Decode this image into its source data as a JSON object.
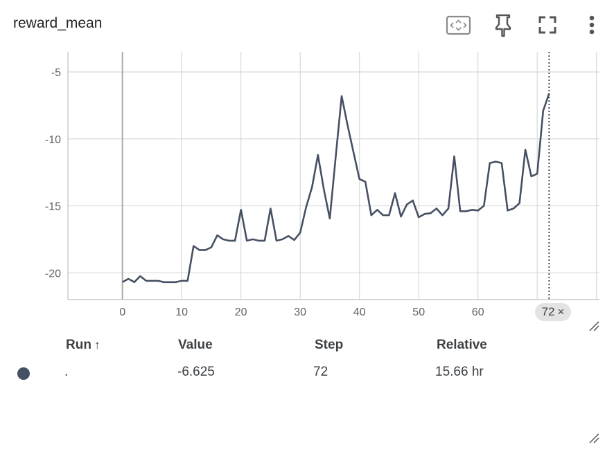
{
  "card": {
    "title": "reward_mean"
  },
  "toolbar": {
    "fit_icon": "fit-domain-icon",
    "pin_icon": "pin-icon",
    "fullscreen_icon": "fullscreen-icon",
    "more_icon": "more-vert-icon"
  },
  "chart_data": {
    "type": "line",
    "x": [
      0,
      1,
      2,
      3,
      4,
      5,
      6,
      7,
      8,
      9,
      10,
      11,
      12,
      13,
      14,
      15,
      16,
      17,
      18,
      19,
      20,
      21,
      22,
      23,
      24,
      25,
      26,
      27,
      28,
      29,
      30,
      31,
      32,
      33,
      34,
      35,
      36,
      37,
      38,
      39,
      40,
      41,
      42,
      43,
      44,
      45,
      46,
      47,
      48,
      49,
      50,
      51,
      52,
      53,
      54,
      55,
      56,
      57,
      58,
      59,
      60,
      61,
      62,
      63,
      64,
      65,
      66,
      67,
      68,
      69,
      70,
      71,
      72
    ],
    "series": [
      {
        "values": [
          -20.7,
          -20.45,
          -20.7,
          -20.25,
          -20.6,
          -20.6,
          -20.6,
          -20.7,
          -20.7,
          -20.7,
          -20.6,
          -20.6,
          -18.0,
          -18.3,
          -18.3,
          -18.1,
          -17.2,
          -17.5,
          -17.6,
          -17.6,
          -15.3,
          -17.6,
          -17.5,
          -17.6,
          -17.6,
          -15.2,
          -17.6,
          -17.5,
          -17.25,
          -17.55,
          -17.0,
          -15.1,
          -13.6,
          -11.2,
          -13.8,
          -15.95,
          -11.3,
          -6.8,
          -9.0,
          -11.0,
          -13.0,
          -13.2,
          -15.7,
          -15.3,
          -15.7,
          -15.7,
          -14.05,
          -15.8,
          -14.9,
          -14.6,
          -15.85,
          -15.6,
          -15.55,
          -15.2,
          -15.7,
          -15.2,
          -11.3,
          -15.4,
          -15.4,
          -15.3,
          -15.35,
          -15.0,
          -11.8,
          -11.7,
          -11.8,
          -15.35,
          -15.2,
          -14.8,
          -10.8,
          -12.8,
          -12.6,
          -7.9,
          -6.625
        ]
      }
    ],
    "ylim": [
      -22,
      -3.5
    ],
    "xlim": [
      -9.2,
      80.5
    ],
    "x_ticks": [
      0,
      10,
      20,
      30,
      40,
      50,
      60
    ],
    "x_tick_labels": [
      "0",
      "10",
      "20",
      "30",
      "40",
      "50",
      "60"
    ],
    "y_ticks": [
      -5,
      -10,
      -15,
      -20
    ],
    "y_tick_labels": [
      "-5",
      "-10",
      "-15",
      "-20"
    ],
    "grid": true,
    "line_color": "#455063",
    "cursor_step": 72
  },
  "step_chip": {
    "label": "72",
    "close": "×"
  },
  "table": {
    "headers": {
      "run": "Run",
      "sort_arrow": "↑",
      "value": "Value",
      "step": "Step",
      "relative": "Relative"
    },
    "row": {
      "run": ".",
      "value": "-6.625",
      "step": "72",
      "relative": "15.66 hr",
      "color": "#455063"
    }
  }
}
